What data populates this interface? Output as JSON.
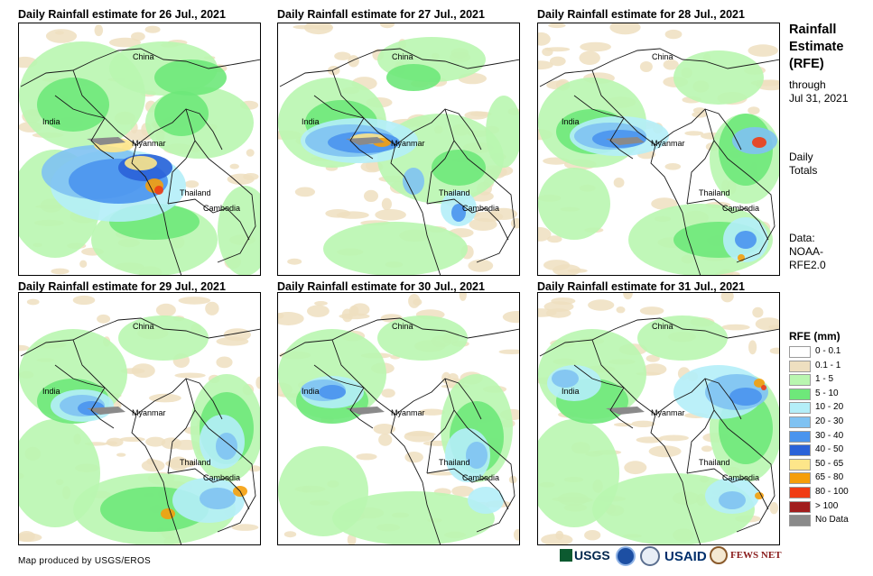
{
  "panels": [
    {
      "title": "Daily Rainfall estimate for 26 Jul., 2021"
    },
    {
      "title": "Daily Rainfall estimate for 27 Jul., 2021"
    },
    {
      "title": "Daily Rainfall estimate for 28 Jul., 2021"
    },
    {
      "title": "Daily Rainfall estimate for 29 Jul., 2021"
    },
    {
      "title": "Daily Rainfall estimate for 30 Jul., 2021"
    },
    {
      "title": "Daily Rainfall estimate for 31 Jul., 2021"
    }
  ],
  "places": {
    "china": "China",
    "india": "India",
    "myanmar": "Myanmar",
    "thailand": "Thailand",
    "cambodia": "Cambodia"
  },
  "sidebar": {
    "title_line1": "Rainfall",
    "title_line2": "Estimate",
    "title_line3": "(RFE)",
    "sub_line1": "through",
    "sub_line2": "Jul 31, 2021",
    "daily_line1": "Daily",
    "daily_line2": "Totals",
    "data_line1": "Data:",
    "data_line2": "NOAA-",
    "data_line3": "RFE2.0"
  },
  "legend": {
    "title": "RFE (mm)",
    "items": [
      {
        "label": "0 - 0.1",
        "color": "#ffffff"
      },
      {
        "label": "0.1 - 1",
        "color": "#eedfc0"
      },
      {
        "label": "1 - 5",
        "color": "#b9f6b0"
      },
      {
        "label": "5 - 10",
        "color": "#6ee87a"
      },
      {
        "label": "10 - 20",
        "color": "#b4eef8"
      },
      {
        "label": "20 - 30",
        "color": "#7fc2f2"
      },
      {
        "label": "30 - 40",
        "color": "#4a94ee"
      },
      {
        "label": "40 - 50",
        "color": "#2a62d8"
      },
      {
        "label": "50 - 65",
        "color": "#fde68a"
      },
      {
        "label": "65 - 80",
        "color": "#f59e0b"
      },
      {
        "label": "80 - 100",
        "color": "#f03c14"
      },
      {
        "label": "> 100",
        "color": "#a11d1d"
      },
      {
        "label": "No Data",
        "color": "#8a8a8a"
      }
    ]
  },
  "footer": {
    "credit": "Map produced by USGS/EROS",
    "logo_usgs": "USGS",
    "logo_usaid": "USAID",
    "logo_fews": "FEWS NET"
  }
}
